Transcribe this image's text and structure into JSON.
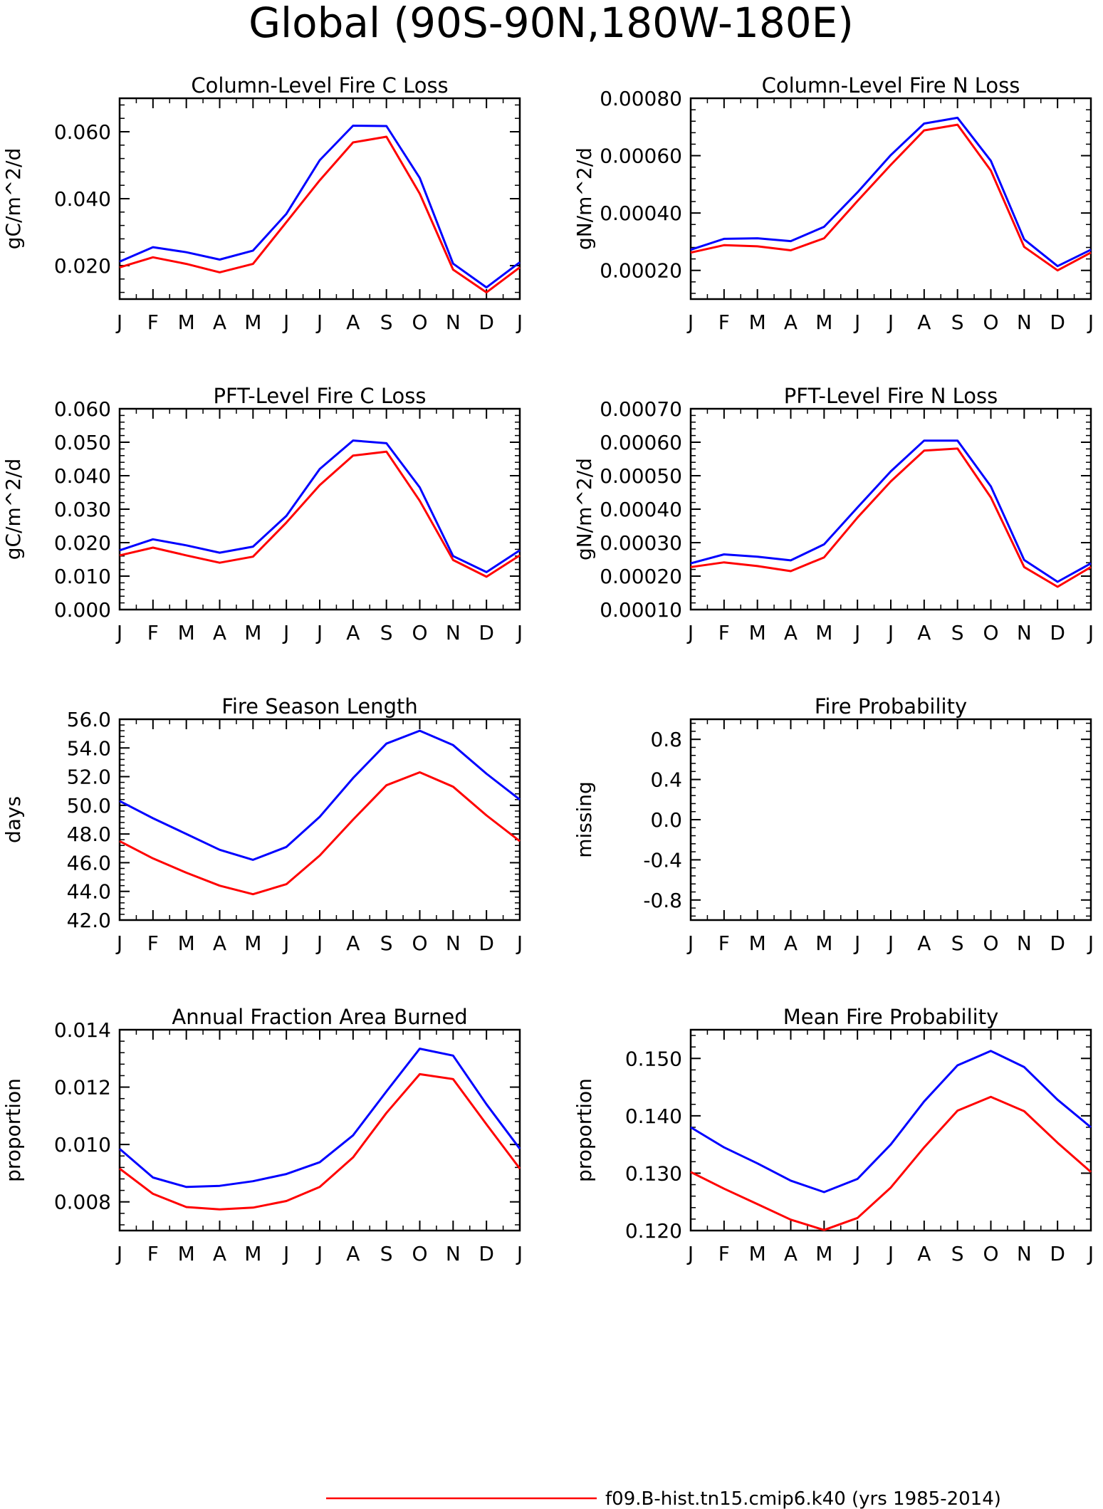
{
  "page": {
    "title": "Global (90S-90N,180W-180E)"
  },
  "legend": {
    "entries": [
      {
        "label": "f09.B-hist.tn15.cmip6.k40 (yrs 1985-2014)",
        "color": "#ff0000"
      }
    ]
  },
  "colors": {
    "series_a": "#0000ff",
    "series_b": "#ff0000"
  },
  "chart_data": [
    {
      "type": "line",
      "title": "Column-Level Fire C Loss",
      "ylabel": "gC/m^2/d",
      "xlabel": "",
      "categories": [
        "J",
        "F",
        "M",
        "A",
        "M",
        "J",
        "J",
        "A",
        "S",
        "O",
        "N",
        "D",
        "J"
      ],
      "ylim": [
        0.01,
        0.07
      ],
      "yticks": [
        "0.020",
        "0.040",
        "0.060"
      ],
      "yticks_values": [
        0.02,
        0.04,
        0.06
      ],
      "series": [
        {
          "color": "#0000ff",
          "values": [
            0.0212,
            0.0255,
            0.024,
            0.0218,
            0.0245,
            0.0355,
            0.0515,
            0.0618,
            0.0617,
            0.0462,
            0.0206,
            0.0135,
            0.021
          ]
        },
        {
          "color": "#ff0000",
          "values": [
            0.0195,
            0.0225,
            0.0205,
            0.018,
            0.0205,
            0.033,
            0.0455,
            0.0568,
            0.0585,
            0.0415,
            0.0188,
            0.012,
            0.0195
          ]
        }
      ],
      "grid": false
    },
    {
      "type": "line",
      "title": "Column-Level Fire N Loss",
      "ylabel": "gN/m^2/d",
      "xlabel": "",
      "categories": [
        "J",
        "F",
        "M",
        "A",
        "M",
        "J",
        "J",
        "A",
        "S",
        "O",
        "N",
        "D",
        "J"
      ],
      "ylim": [
        0.0001,
        0.0008
      ],
      "yticks": [
        "0.00020",
        "0.00040",
        "0.00060",
        "0.00080"
      ],
      "yticks_values": [
        0.0002,
        0.0004,
        0.0006,
        0.0008
      ],
      "series": [
        {
          "color": "#0000ff",
          "values": [
            0.000272,
            0.00031,
            0.000312,
            0.000302,
            0.000352,
            0.000472,
            0.000602,
            0.000712,
            0.000732,
            0.000582,
            0.000308,
            0.000215,
            0.000272
          ]
        },
        {
          "color": "#ff0000",
          "values": [
            0.000262,
            0.000288,
            0.000284,
            0.00027,
            0.000312,
            0.000442,
            0.000568,
            0.000688,
            0.000708,
            0.000548,
            0.000282,
            0.0002,
            0.000262
          ]
        }
      ],
      "grid": false
    },
    {
      "type": "line",
      "title": "PFT-Level Fire C Loss",
      "ylabel": "gC/m^2/d",
      "xlabel": "",
      "categories": [
        "J",
        "F",
        "M",
        "A",
        "M",
        "J",
        "J",
        "A",
        "S",
        "O",
        "N",
        "D",
        "J"
      ],
      "ylim": [
        0.0,
        0.06
      ],
      "yticks": [
        "0.000",
        "0.010",
        "0.020",
        "0.030",
        "0.040",
        "0.050",
        "0.060"
      ],
      "yticks_values": [
        0.0,
        0.01,
        0.02,
        0.03,
        0.04,
        0.05,
        0.06
      ],
      "series": [
        {
          "color": "#0000ff",
          "values": [
            0.0177,
            0.021,
            0.0192,
            0.017,
            0.0188,
            0.028,
            0.042,
            0.0505,
            0.0497,
            0.0365,
            0.016,
            0.0112,
            0.0177
          ]
        },
        {
          "color": "#ff0000",
          "values": [
            0.0162,
            0.0185,
            0.0162,
            0.014,
            0.0158,
            0.026,
            0.0372,
            0.046,
            0.0472,
            0.0325,
            0.0148,
            0.0098,
            0.0162
          ]
        }
      ],
      "grid": false
    },
    {
      "type": "line",
      "title": "PFT-Level Fire N Loss",
      "ylabel": "gN/m^2/d",
      "xlabel": "",
      "categories": [
        "J",
        "F",
        "M",
        "A",
        "M",
        "J",
        "J",
        "A",
        "S",
        "O",
        "N",
        "D",
        "J"
      ],
      "ylim": [
        0.0001,
        0.0007
      ],
      "yticks": [
        "0.00010",
        "0.00020",
        "0.00030",
        "0.00040",
        "0.00050",
        "0.00060",
        "0.00070"
      ],
      "yticks_values": [
        0.0001,
        0.0002,
        0.0003,
        0.0004,
        0.0005,
        0.0006,
        0.0007
      ],
      "series": [
        {
          "color": "#0000ff",
          "values": [
            0.000238,
            0.000265,
            0.000258,
            0.000247,
            0.000295,
            0.000405,
            0.000513,
            0.000605,
            0.000605,
            0.000468,
            0.000248,
            0.000183,
            0.000238
          ]
        },
        {
          "color": "#ff0000",
          "values": [
            0.000227,
            0.000241,
            0.00023,
            0.000215,
            0.000256,
            0.000375,
            0.000483,
            0.000575,
            0.000581,
            0.000435,
            0.000227,
            0.000168,
            0.000227
          ]
        }
      ],
      "grid": false
    },
    {
      "type": "line",
      "title": "Fire Season Length",
      "ylabel": "days",
      "xlabel": "",
      "categories": [
        "J",
        "F",
        "M",
        "A",
        "M",
        "J",
        "J",
        "A",
        "S",
        "O",
        "N",
        "D",
        "J"
      ],
      "ylim": [
        42.0,
        56.0
      ],
      "yticks": [
        "42.0",
        "44.0",
        "46.0",
        "48.0",
        "50.0",
        "52.0",
        "54.0",
        "56.0"
      ],
      "yticks_values": [
        42.0,
        44.0,
        46.0,
        48.0,
        50.0,
        52.0,
        54.0,
        56.0
      ],
      "series": [
        {
          "color": "#0000ff",
          "values": [
            50.3,
            49.1,
            48.0,
            46.9,
            46.2,
            47.1,
            49.2,
            51.9,
            54.3,
            55.2,
            54.2,
            52.2,
            50.4
          ]
        },
        {
          "color": "#ff0000",
          "values": [
            47.5,
            46.3,
            45.3,
            44.4,
            43.8,
            44.5,
            46.5,
            49.0,
            51.4,
            52.3,
            51.3,
            49.3,
            47.5
          ]
        }
      ],
      "grid": false
    },
    {
      "type": "line",
      "title": "Fire Probability",
      "ylabel": "missing",
      "xlabel": "",
      "categories": [
        "J",
        "F",
        "M",
        "A",
        "M",
        "J",
        "J",
        "A",
        "S",
        "O",
        "N",
        "D",
        "J"
      ],
      "ylim": [
        -1.0,
        1.0
      ],
      "yticks": [
        "-0.8",
        "-0.4",
        "0.0",
        "0.4",
        "0.8"
      ],
      "yticks_values": [
        -0.8,
        -0.4,
        0.0,
        0.4,
        0.8
      ],
      "series": [],
      "grid": false
    },
    {
      "type": "line",
      "title": "Annual Fraction Area Burned",
      "ylabel": "proportion",
      "xlabel": "",
      "categories": [
        "J",
        "F",
        "M",
        "A",
        "M",
        "J",
        "J",
        "A",
        "S",
        "O",
        "N",
        "D",
        "J"
      ],
      "ylim": [
        0.007,
        0.014
      ],
      "yticks": [
        "0.008",
        "0.010",
        "0.012",
        "0.014"
      ],
      "yticks_values": [
        0.008,
        0.01,
        0.012,
        0.014
      ],
      "series": [
        {
          "color": "#0000ff",
          "values": [
            0.00985,
            0.00885,
            0.00852,
            0.00856,
            0.00872,
            0.00897,
            0.00938,
            0.01032,
            0.01185,
            0.01334,
            0.0131,
            0.0114,
            0.00985
          ]
        },
        {
          "color": "#ff0000",
          "values": [
            0.00916,
            0.00828,
            0.00782,
            0.00774,
            0.0078,
            0.00803,
            0.00852,
            0.00955,
            0.0111,
            0.01245,
            0.01228,
            0.0107,
            0.00916
          ]
        }
      ],
      "grid": false
    },
    {
      "type": "line",
      "title": "Mean Fire Probability",
      "ylabel": "proportion",
      "xlabel": "",
      "categories": [
        "J",
        "F",
        "M",
        "A",
        "M",
        "J",
        "J",
        "A",
        "S",
        "O",
        "N",
        "D",
        "J"
      ],
      "ylim": [
        0.12,
        0.155
      ],
      "yticks": [
        "0.120",
        "0.130",
        "0.140",
        "0.150"
      ],
      "yticks_values": [
        0.12,
        0.13,
        0.14,
        0.15
      ],
      "series": [
        {
          "color": "#0000ff",
          "values": [
            0.138,
            0.1345,
            0.1317,
            0.1287,
            0.1267,
            0.129,
            0.135,
            0.1425,
            0.1488,
            0.1513,
            0.1485,
            0.1428,
            0.138
          ]
        },
        {
          "color": "#ff0000",
          "values": [
            0.1302,
            0.1273,
            0.1246,
            0.1219,
            0.1201,
            0.1222,
            0.1275,
            0.1345,
            0.1409,
            0.1433,
            0.1408,
            0.1353,
            0.1302
          ]
        }
      ],
      "grid": false
    }
  ]
}
